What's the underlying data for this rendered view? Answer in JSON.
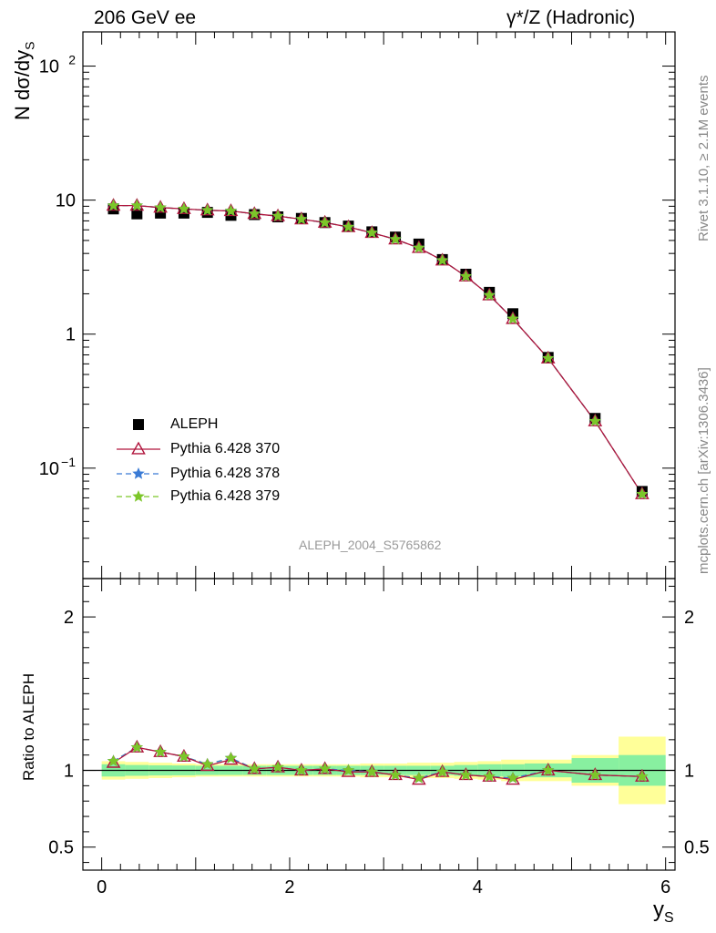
{
  "header": {
    "left": "206 GeV ee",
    "right": "γ*/Z (Hadronic)"
  },
  "side_text": {
    "rivet": "Rivet 3.1.10, ≥ 2.1M events",
    "mcplots": "mcplots.cern.ch [arXiv:1306.3436]"
  },
  "watermark": "ALEPH_2004_S5765862",
  "colors": {
    "data": "#000000",
    "mc370": "#b0143c",
    "mc378": "#3a7bd5",
    "mc379": "#7cc629",
    "band_inner": "#88f0a0",
    "band_outer": "#ffff99"
  },
  "chart_data": [
    {
      "type": "line",
      "ylabel": "N dσ/dy",
      "ylabel_sub": "S",
      "xlabel": "y",
      "xlabel_sub": "S",
      "log_y": true,
      "xlim": [
        -0.2,
        6.1
      ],
      "ylim": [
        0.015,
        180
      ],
      "y_ticks": [
        {
          "value": 0.1,
          "label": "10",
          "sup": "−1"
        },
        {
          "value": 1,
          "label": "1",
          "sup": ""
        },
        {
          "value": 10,
          "label": "10",
          "sup": ""
        },
        {
          "value": 100,
          "label": "10",
          "sup": "2"
        }
      ],
      "x": [
        0.125,
        0.375,
        0.625,
        0.875,
        1.125,
        1.375,
        1.625,
        1.875,
        2.125,
        2.375,
        2.625,
        2.875,
        3.125,
        3.375,
        3.625,
        3.875,
        4.125,
        4.375,
        4.75,
        5.25,
        5.75
      ],
      "series": [
        {
          "name": "ALEPH",
          "marker": "square",
          "values": [
            8.6,
            7.9,
            8.0,
            8.0,
            8.1,
            7.7,
            7.8,
            7.5,
            7.3,
            6.8,
            6.4,
            5.8,
            5.3,
            4.7,
            3.6,
            2.8,
            2.05,
            1.42,
            0.67,
            0.235,
            0.067
          ]
        },
        {
          "name": "Pythia 6.428 370",
          "marker": "triangle",
          "dash": "",
          "values": [
            9.1,
            9.1,
            8.8,
            8.6,
            8.4,
            8.3,
            7.9,
            7.6,
            7.2,
            6.8,
            6.3,
            5.7,
            5.1,
            4.4,
            3.55,
            2.7,
            1.95,
            1.3,
            0.66,
            0.224,
            0.064
          ]
        },
        {
          "name": "Pythia 6.428 378",
          "marker": "star",
          "dash": "6,4",
          "values": [
            9.1,
            9.1,
            8.8,
            8.6,
            8.4,
            8.3,
            7.9,
            7.6,
            7.2,
            6.8,
            6.3,
            5.7,
            5.1,
            4.4,
            3.55,
            2.7,
            1.95,
            1.3,
            0.66,
            0.224,
            0.064
          ]
        },
        {
          "name": "Pythia 6.428 379",
          "marker": "star",
          "dash": "6,4",
          "values": [
            9.1,
            9.1,
            8.8,
            8.6,
            8.4,
            8.3,
            7.9,
            7.6,
            7.2,
            6.8,
            6.3,
            5.7,
            5.1,
            4.4,
            3.55,
            2.7,
            1.95,
            1.3,
            0.66,
            0.224,
            0.064
          ]
        }
      ]
    },
    {
      "type": "line",
      "ylabel": "Ratio to ALEPH",
      "xlabel": "y",
      "xlabel_sub": "S",
      "ylim": [
        0.35,
        2.25
      ],
      "xlim": [
        -0.2,
        6.1
      ],
      "y_ticks": [
        {
          "value": 0.5,
          "label": "0.5"
        },
        {
          "value": 1,
          "label": "1"
        },
        {
          "value": 2,
          "label": "2"
        }
      ],
      "x_ticks": [
        {
          "value": 0,
          "label": "0"
        },
        {
          "value": 2,
          "label": "2"
        },
        {
          "value": 4,
          "label": "4"
        },
        {
          "value": 6,
          "label": "6"
        }
      ],
      "bin_edges": [
        0,
        0.25,
        0.5,
        0.75,
        1.0,
        1.25,
        1.5,
        1.75,
        2.0,
        2.25,
        2.5,
        2.75,
        3.0,
        3.25,
        3.5,
        3.75,
        4.0,
        4.25,
        4.5,
        5.0,
        5.5,
        6.0
      ],
      "band_inner": [
        0.04,
        0.035,
        0.033,
        0.032,
        0.03,
        0.03,
        0.03,
        0.03,
        0.03,
        0.03,
        0.03,
        0.03,
        0.03,
        0.03,
        0.03,
        0.035,
        0.04,
        0.04,
        0.045,
        0.08,
        0.1
      ],
      "band_outer": [
        0.06,
        0.055,
        0.05,
        0.045,
        0.04,
        0.04,
        0.04,
        0.04,
        0.04,
        0.04,
        0.04,
        0.045,
        0.045,
        0.05,
        0.05,
        0.055,
        0.06,
        0.07,
        0.07,
        0.1,
        0.22
      ],
      "x": [
        0.125,
        0.375,
        0.625,
        0.875,
        1.125,
        1.375,
        1.625,
        1.875,
        2.125,
        2.375,
        2.625,
        2.875,
        3.125,
        3.375,
        3.625,
        3.875,
        4.125,
        4.375,
        4.75,
        5.25,
        5.75
      ],
      "series": [
        {
          "name": "Pythia 6.428 370",
          "values": [
            1.05,
            1.15,
            1.12,
            1.09,
            1.03,
            1.07,
            1.01,
            1.02,
            1.0,
            1.01,
            0.99,
            0.99,
            0.97,
            0.94,
            0.99,
            0.97,
            0.96,
            0.94,
            1.0,
            0.97,
            0.96
          ]
        },
        {
          "name": "Pythia 6.428 378",
          "values": [
            1.06,
            1.15,
            1.12,
            1.09,
            1.04,
            1.08,
            1.01,
            1.02,
            1.0,
            1.01,
            1.0,
            0.99,
            0.97,
            0.95,
            0.99,
            0.97,
            0.96,
            0.95,
            1.0,
            0.97,
            0.96
          ]
        },
        {
          "name": "Pythia 6.428 379",
          "values": [
            1.06,
            1.15,
            1.12,
            1.09,
            1.04,
            1.08,
            1.01,
            1.02,
            1.0,
            1.01,
            1.0,
            0.99,
            0.97,
            0.95,
            0.99,
            0.97,
            0.96,
            0.95,
            1.0,
            0.97,
            0.96
          ]
        }
      ]
    }
  ]
}
